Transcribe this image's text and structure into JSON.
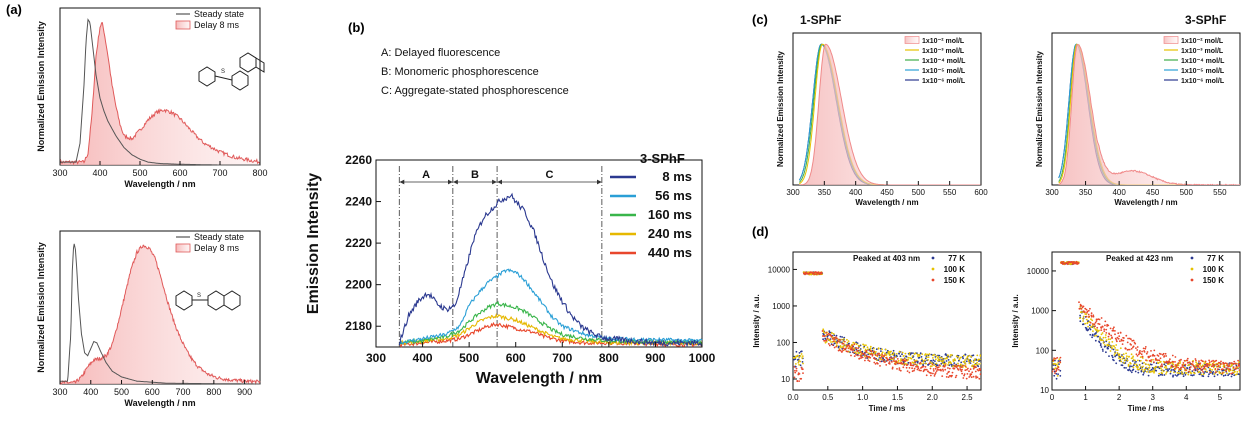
{
  "figure": {
    "panel_letters": [
      "(a)",
      "(b)",
      "(c)",
      "(d)"
    ]
  },
  "chart_data": [
    {
      "id": "a1",
      "type": "line",
      "xlabel": "Wavelength / nm",
      "ylabel": "Normalized Emission Intensity",
      "xlim": [
        300,
        800
      ],
      "ylim": [
        0,
        1.08
      ],
      "xticks": [
        300,
        400,
        500,
        600,
        700,
        800
      ],
      "legend": [
        "Steady state",
        "Delay 8 ms"
      ],
      "legend_position": "top-right",
      "series": [
        {
          "name": "Steady state",
          "color": "#555555",
          "fill": false,
          "x": [
            340,
            350,
            360,
            365,
            370,
            375,
            380,
            390,
            400,
            410,
            420,
            440,
            460,
            480,
            500,
            520,
            550,
            600,
            700,
            800
          ],
          "y": [
            0.02,
            0.15,
            0.55,
            0.85,
            1.0,
            0.98,
            0.86,
            0.62,
            0.46,
            0.37,
            0.3,
            0.2,
            0.12,
            0.07,
            0.04,
            0.02,
            0.01,
            0.005,
            0,
            0
          ]
        },
        {
          "name": "Delay 8 ms",
          "color": "#e05a5a",
          "fill": true,
          "x": [
            360,
            370,
            380,
            390,
            400,
            405,
            410,
            420,
            430,
            440,
            450,
            460,
            480,
            500,
            520,
            540,
            560,
            580,
            600,
            620,
            640,
            660,
            680,
            700,
            720,
            740,
            760,
            780,
            800
          ],
          "y": [
            0.02,
            0.08,
            0.35,
            0.75,
            0.95,
            0.98,
            0.92,
            0.75,
            0.55,
            0.4,
            0.28,
            0.2,
            0.18,
            0.24,
            0.31,
            0.36,
            0.38,
            0.36,
            0.32,
            0.26,
            0.2,
            0.15,
            0.12,
            0.09,
            0.07,
            0.05,
            0.04,
            0.03,
            0.02
          ]
        }
      ]
    },
    {
      "id": "a2",
      "type": "line",
      "xlabel": "Wavelength / nm",
      "ylabel": "Normalized Emission Intensity",
      "xlim": [
        300,
        950
      ],
      "ylim": [
        0,
        1.08
      ],
      "xticks": [
        300,
        400,
        500,
        600,
        700,
        800,
        900
      ],
      "legend": [
        "Steady state",
        "Delay 8 ms"
      ],
      "legend_position": "top-right",
      "series": [
        {
          "name": "Steady state",
          "color": "#555555",
          "fill": false,
          "x": [
            325,
            335,
            340,
            345,
            350,
            355,
            360,
            370,
            380,
            390,
            400,
            410,
            420,
            430,
            450,
            470,
            500,
            550,
            650,
            950
          ],
          "y": [
            0.02,
            0.35,
            0.8,
            1.0,
            0.95,
            0.8,
            0.6,
            0.35,
            0.22,
            0.2,
            0.25,
            0.3,
            0.29,
            0.24,
            0.15,
            0.09,
            0.05,
            0.02,
            0.005,
            0
          ]
        },
        {
          "name": "Delay 8 ms",
          "color": "#e05a5a",
          "fill": true,
          "x": [
            350,
            370,
            390,
            410,
            430,
            450,
            470,
            490,
            510,
            530,
            550,
            570,
            590,
            610,
            630,
            650,
            670,
            690,
            710,
            730,
            750,
            780,
            810,
            850,
            900,
            950
          ],
          "y": [
            0.01,
            0.05,
            0.12,
            0.17,
            0.18,
            0.2,
            0.28,
            0.44,
            0.62,
            0.8,
            0.93,
            0.98,
            0.96,
            0.88,
            0.74,
            0.58,
            0.44,
            0.33,
            0.24,
            0.17,
            0.12,
            0.07,
            0.045,
            0.03,
            0.02,
            0.015
          ]
        }
      ]
    },
    {
      "id": "b",
      "type": "line",
      "xlabel": "Wavelength / nm",
      "ylabel": "Emission Intensity",
      "xlim": [
        300,
        1000
      ],
      "ylim": [
        2170,
        2260
      ],
      "xticks": [
        300,
        400,
        500,
        600,
        700,
        800,
        900,
        1000
      ],
      "yticks": [
        2180,
        2200,
        2220,
        2240,
        2260
      ],
      "legend_title": "3-SPhF",
      "legend": [
        "8 ms",
        "56 ms",
        "160 ms",
        "240 ms",
        "440 ms"
      ],
      "legend_position": "top-right",
      "annotations": [
        "A: Delayed fluorescence",
        "B: Monomeric phosphorescence",
        "C: Aggregate-stated phosphorescence"
      ],
      "regions": [
        {
          "label": "A",
          "x_start": 350,
          "x_end": 465
        },
        {
          "label": "B",
          "x_start": 465,
          "x_end": 560
        },
        {
          "label": "C",
          "x_start": 560,
          "x_end": 785
        }
      ],
      "series": [
        {
          "name": "8 ms",
          "color": "#2b3990",
          "x": [
            350,
            370,
            390,
            410,
            420,
            430,
            450,
            470,
            490,
            510,
            530,
            550,
            570,
            590,
            600,
            620,
            640,
            660,
            680,
            700,
            720,
            740,
            760,
            780,
            800,
            850,
            900,
            1000
          ],
          "y": [
            2172,
            2185,
            2192,
            2196,
            2194,
            2191,
            2188,
            2190,
            2205,
            2222,
            2232,
            2237,
            2241,
            2243,
            2240,
            2235,
            2225,
            2212,
            2200,
            2192,
            2185,
            2180,
            2177,
            2175,
            2174,
            2173,
            2172,
            2172
          ]
        },
        {
          "name": "56 ms",
          "color": "#2a9fd6",
          "x": [
            350,
            400,
            450,
            480,
            500,
            520,
            540,
            560,
            580,
            600,
            620,
            640,
            660,
            680,
            700,
            750,
            800,
            1000
          ],
          "y": [
            2172,
            2174,
            2176,
            2180,
            2190,
            2196,
            2201,
            2204,
            2207,
            2206,
            2202,
            2196,
            2190,
            2184,
            2180,
            2176,
            2174,
            2173
          ]
        },
        {
          "name": "160 ms",
          "color": "#39b54a",
          "x": [
            350,
            400,
            450,
            480,
            500,
            520,
            540,
            560,
            580,
            600,
            620,
            640,
            660,
            680,
            700,
            750,
            800,
            1000
          ],
          "y": [
            2172,
            2173,
            2175,
            2178,
            2182,
            2186,
            2189,
            2191,
            2190,
            2189,
            2187,
            2184,
            2181,
            2178,
            2176,
            2174,
            2173,
            2172
          ]
        },
        {
          "name": "240 ms",
          "color": "#e6b800",
          "x": [
            350,
            400,
            450,
            480,
            500,
            520,
            540,
            560,
            580,
            600,
            620,
            640,
            660,
            680,
            700,
            750,
            800,
            1000
          ],
          "y": [
            2172,
            2173,
            2174,
            2176,
            2179,
            2182,
            2184,
            2185,
            2184,
            2183,
            2181,
            2179,
            2177,
            2175,
            2174,
            2173,
            2172,
            2172
          ]
        },
        {
          "name": "440 ms",
          "color": "#e8472c",
          "x": [
            350,
            400,
            450,
            480,
            500,
            520,
            540,
            560,
            580,
            600,
            620,
            640,
            660,
            680,
            700,
            750,
            800,
            1000
          ],
          "y": [
            2171,
            2172,
            2173,
            2174,
            2176,
            2178,
            2180,
            2181,
            2180,
            2179,
            2178,
            2177,
            2175,
            2174,
            2173,
            2172,
            2172,
            2171
          ]
        }
      ]
    },
    {
      "id": "c1",
      "type": "line",
      "title": "1-SPhF",
      "xlabel": "Wavelength / nm",
      "ylabel": "Normalized Emission Intensity",
      "xlim": [
        300,
        600
      ],
      "ylim": [
        0,
        1.08
      ],
      "xticks": [
        300,
        350,
        400,
        450,
        500,
        550,
        600
      ],
      "legend": [
        "1x10⁻² mol/L",
        "1x10⁻³ mol/L",
        "1x10⁻⁴ mol/L",
        "1x10⁻⁵ mol/L",
        "1x10⁻⁶ mol/L"
      ],
      "legend_position": "top-right",
      "series": [
        {
          "name": "1x10⁻² mol/L",
          "color": "#f08a8a",
          "fill": true,
          "peak": 352,
          "rise": 15,
          "decay": 34
        },
        {
          "name": "1x10⁻³ mol/L",
          "color": "#e6c200",
          "peak": 347,
          "rise": 17,
          "decay": 33
        },
        {
          "name": "1x10⁻⁴ mol/L",
          "color": "#3fae49",
          "peak": 346,
          "rise": 18,
          "decay": 33
        },
        {
          "name": "1x10⁻⁵ mol/L",
          "color": "#2a9fd6",
          "peak": 345,
          "rise": 19,
          "decay": 33
        },
        {
          "name": "1x10⁻⁶ mol/L",
          "color": "#2b3990",
          "peak": 345,
          "rise": 19,
          "decay": 32
        }
      ]
    },
    {
      "id": "c2",
      "type": "line",
      "title": "3-SPhF",
      "xlabel": "Wavelength / nm",
      "ylabel": "Normalized Emission Intensity",
      "xlim": [
        300,
        580
      ],
      "ylim": [
        0,
        1.08
      ],
      "xticks": [
        300,
        350,
        400,
        450,
        500,
        550
      ],
      "legend": [
        "1x10⁻² mol/L",
        "1x10⁻³ mol/L",
        "1x10⁻⁴ mol/L",
        "1x10⁻⁵ mol/L",
        "1x10⁻⁶ mol/L"
      ],
      "legend_position": "top-right",
      "series": [
        {
          "name": "1x10⁻² mol/L",
          "color": "#f08a8a",
          "fill": true,
          "peak": 338,
          "rise": 12,
          "decay": 26,
          "tail": 0.1
        },
        {
          "name": "1x10⁻³ mol/L",
          "color": "#e6c200",
          "peak": 337,
          "rise": 13,
          "decay": 25
        },
        {
          "name": "1x10⁻⁴ mol/L",
          "color": "#3fae49",
          "peak": 337,
          "rise": 14,
          "decay": 24
        },
        {
          "name": "1x10⁻⁵ mol/L",
          "color": "#2a9fd6",
          "peak": 336,
          "rise": 15,
          "decay": 24
        },
        {
          "name": "1x10⁻⁶ mol/L",
          "color": "#2b3990",
          "peak": 336,
          "rise": 15,
          "decay": 23
        }
      ]
    },
    {
      "id": "d1",
      "type": "scatter",
      "annotation": "Peaked at 403 nm",
      "xlabel": "Time / ms",
      "ylabel": "Intensity / a.u.",
      "xlim": [
        0,
        2.7
      ],
      "ylim": [
        5,
        30000
      ],
      "yscale": "log",
      "xticks": [
        0.0,
        0.5,
        1.0,
        1.5,
        2.0,
        2.5
      ],
      "xtick_labels": [
        "0.0",
        "0.5",
        "1.0",
        "1.5",
        "2.0",
        "2.5"
      ],
      "yticks": [
        10,
        100,
        1000,
        10000
      ],
      "legend": [
        "77 K",
        "100 K",
        "150 K"
      ],
      "legend_position": "top-right",
      "series": [
        {
          "name": "77 K",
          "color": "#2b3990",
          "pulse_end": 0.42,
          "plateau": 8500,
          "start": 180,
          "floor": 32,
          "tau": 0.35
        },
        {
          "name": "100 K",
          "color": "#e6c200",
          "pulse_end": 0.42,
          "plateau": 8500,
          "start": 160,
          "floor": 30,
          "tau": 0.4
        },
        {
          "name": "150 K",
          "color": "#e8472c",
          "pulse_end": 0.42,
          "plateau": 8500,
          "start": 140,
          "floor": 14,
          "tau": 0.45
        }
      ]
    },
    {
      "id": "d2",
      "type": "scatter",
      "annotation": "Peaked at 423 nm",
      "xlabel": "Time / ms",
      "ylabel": "Intensity / a.u.",
      "xlim": [
        0,
        5.6
      ],
      "ylim": [
        10,
        30000
      ],
      "yscale": "log",
      "xticks": [
        0,
        1,
        2,
        3,
        4,
        5
      ],
      "xtick_labels": [
        "0",
        "1",
        "2",
        "3",
        "4",
        "5"
      ],
      "yticks": [
        10,
        100,
        1000,
        10000
      ],
      "legend": [
        "77 K",
        "100 K",
        "150 K"
      ],
      "legend_position": "top-right",
      "series": [
        {
          "name": "77 K",
          "color": "#2b3990",
          "pulse_end": 0.8,
          "plateau": 17000,
          "start": 900,
          "floor": 32,
          "tau": 0.35
        },
        {
          "name": "100 K",
          "color": "#e6c200",
          "pulse_end": 0.8,
          "plateau": 17000,
          "start": 1000,
          "floor": 36,
          "tau": 0.4
        },
        {
          "name": "150 K",
          "color": "#e8472c",
          "pulse_end": 0.8,
          "plateau": 17000,
          "start": 1300,
          "floor": 38,
          "tau": 0.6
        }
      ]
    }
  ]
}
